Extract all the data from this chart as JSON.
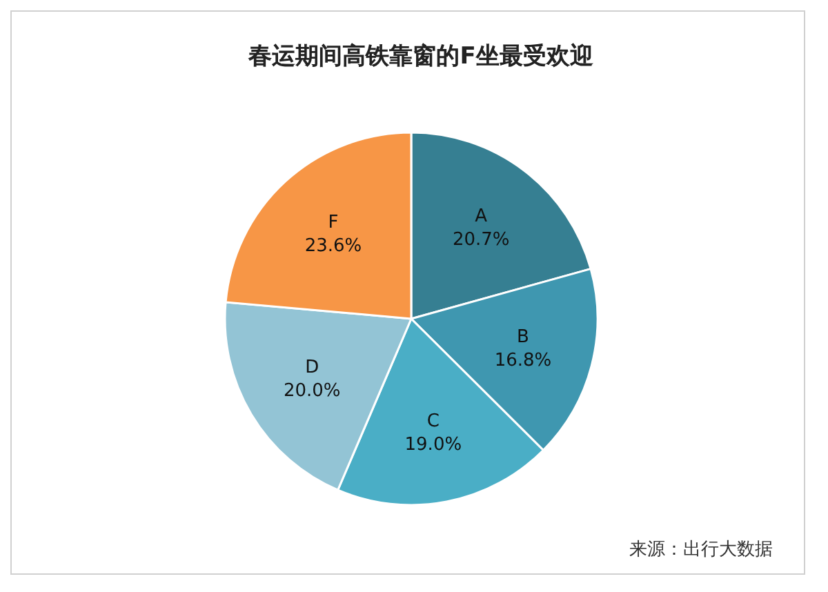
{
  "chart_data": {
    "type": "pie",
    "title": "春运期间高铁靠窗的F坐最受欢迎",
    "categories": [
      "A",
      "B",
      "C",
      "D",
      "F"
    ],
    "values": [
      20.7,
      16.8,
      19.0,
      20.0,
      23.6
    ],
    "colors": [
      "#367f92",
      "#3f97b0",
      "#4aaec6",
      "#93c4d5",
      "#f79646"
    ],
    "value_labels": [
      "20.7%",
      "16.8%",
      "19.0%",
      "20.0%",
      "23.6%"
    ],
    "annotations": [
      "来源：出行大数据"
    ]
  }
}
